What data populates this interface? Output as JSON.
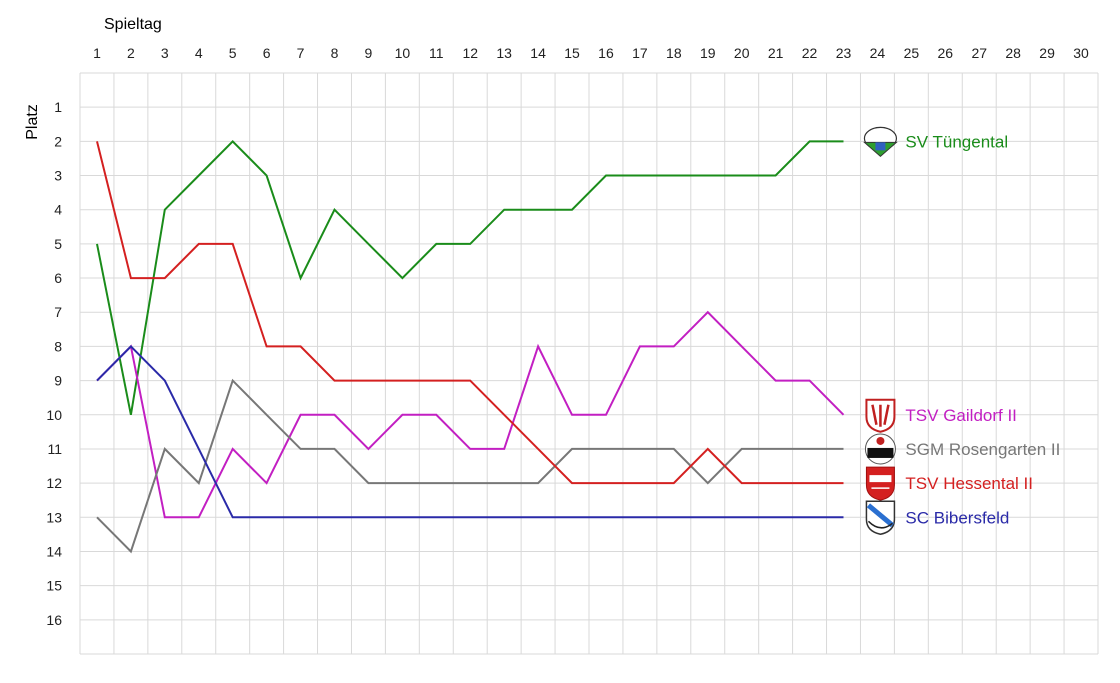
{
  "chart_data": {
    "type": "line",
    "xlabel": "Spieltag",
    "ylabel": "Platz",
    "x_categories": [
      1,
      2,
      3,
      4,
      5,
      6,
      7,
      8,
      9,
      10,
      11,
      12,
      13,
      14,
      15,
      16,
      17,
      18,
      19,
      20,
      21,
      22,
      23,
      24,
      25,
      26,
      27,
      28,
      29,
      30
    ],
    "y_ticks": [
      1,
      2,
      3,
      4,
      5,
      6,
      7,
      8,
      9,
      10,
      11,
      12,
      13,
      14,
      15,
      16
    ],
    "ylim": [
      17,
      0
    ],
    "y_inverted": true,
    "grid": true,
    "legend": "right-of-lines",
    "series": [
      {
        "name": "SV Tüngental",
        "color": "#1a8c1a",
        "logo": "sv-tuengental-crest-icon",
        "values": [
          5,
          10,
          4,
          3,
          2,
          3,
          6,
          4,
          5,
          6,
          5,
          5,
          4,
          4,
          4,
          3,
          3,
          3,
          3,
          3,
          3,
          2,
          2
        ]
      },
      {
        "name": "TSV Gaildorf II",
        "color": "#c21fc2",
        "logo": "tsv-gaildorf-crest-icon",
        "values": [
          9,
          8,
          13,
          13,
          11,
          12,
          10,
          10,
          11,
          10,
          10,
          11,
          11,
          8,
          10,
          10,
          8,
          8,
          7,
          8,
          9,
          9,
          10
        ]
      },
      {
        "name": "SGM Rosengarten II",
        "color": "#777777",
        "logo": "sgm-rosengarten-crest-icon",
        "values": [
          13,
          14,
          11,
          12,
          9,
          10,
          11,
          11,
          12,
          12,
          12,
          12,
          12,
          12,
          11,
          11,
          11,
          11,
          12,
          11,
          11,
          11,
          11
        ]
      },
      {
        "name": "TSV Hessental II",
        "color": "#d42020",
        "logo": "tsv-hessental-crest-icon",
        "values": [
          2,
          6,
          6,
          5,
          5,
          8,
          8,
          9,
          9,
          9,
          9,
          9,
          10,
          11,
          12,
          12,
          12,
          12,
          11,
          12,
          12,
          12,
          12
        ]
      },
      {
        "name": "SC Bibersfeld",
        "color": "#2a2aa8",
        "logo": "sc-bibersfeld-crest-icon",
        "values": [
          9,
          8,
          9,
          11,
          13,
          13,
          13,
          13,
          13,
          13,
          13,
          13,
          13,
          13,
          13,
          13,
          13,
          13,
          13,
          13,
          13,
          13,
          13
        ]
      }
    ]
  }
}
